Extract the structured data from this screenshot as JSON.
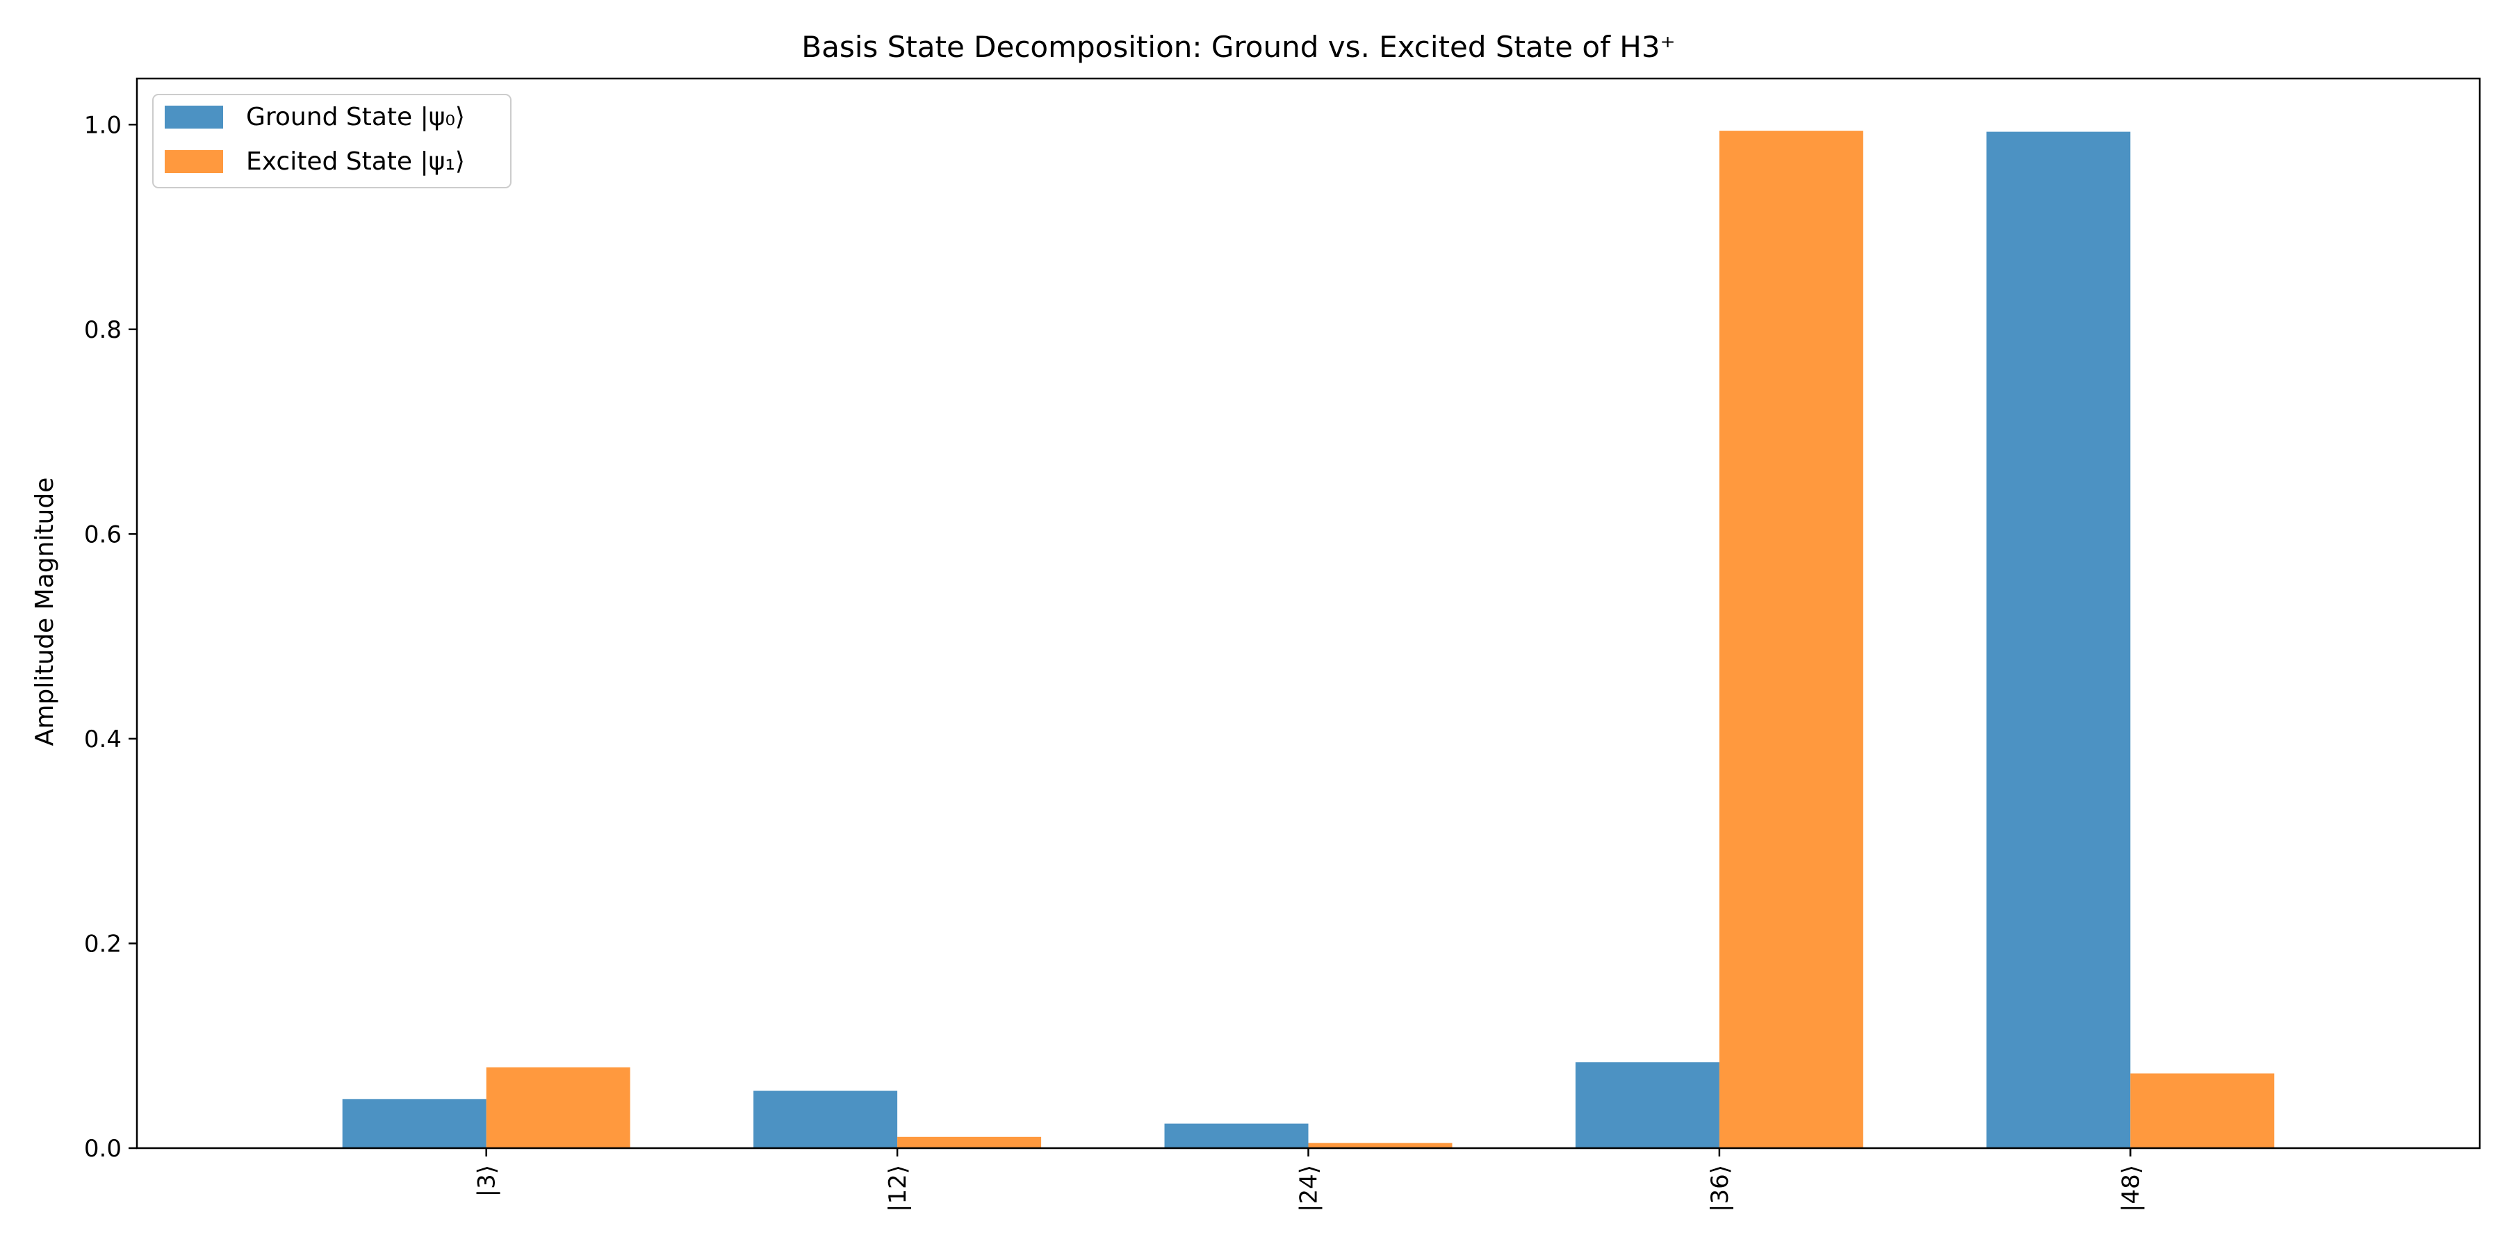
{
  "chart_data": {
    "type": "bar",
    "title": "Basis State Decomposition: Ground vs. Excited State of H3⁺",
    "xlabel": "",
    "ylabel": "Amplitude Magnitude",
    "categories": [
      "|3⟩",
      "|12⟩",
      "|24⟩",
      "|36⟩",
      "|48⟩"
    ],
    "series": [
      {
        "name": "Ground State |ψ₀⟩",
        "color": "#4c92c3",
        "values": [
          0.048,
          0.056,
          0.024,
          0.084,
          0.993
        ]
      },
      {
        "name": "Excited State |ψ₁⟩",
        "color": "#ff993e",
        "values": [
          0.079,
          0.011,
          0.005,
          0.994,
          0.073
        ]
      }
    ],
    "ylim": [
      0,
      1.045
    ],
    "yticks": [
      0.0,
      0.2,
      0.4,
      0.6,
      0.8,
      1.0
    ],
    "ytick_labels": [
      "0.0",
      "0.2",
      "0.4",
      "0.6",
      "0.8",
      "1.0"
    ],
    "legend_position": "top-left",
    "grid": false
  }
}
